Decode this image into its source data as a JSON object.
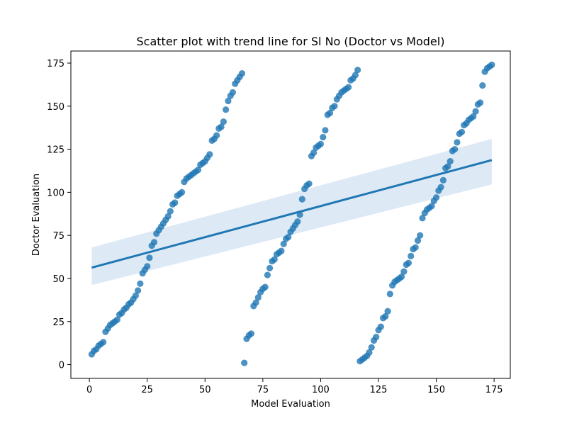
{
  "chart_data": {
    "type": "scatter",
    "title": "Scatter plot with trend line for Sl No (Doctor vs Model)",
    "xlabel": "Model Evaluation",
    "ylabel": "Doctor Evaluation",
    "xlim": [
      -8.0,
      182.0
    ],
    "ylim": [
      -8.0,
      182.0
    ],
    "xticks": [
      0,
      25,
      50,
      75,
      100,
      125,
      150,
      175
    ],
    "yticks": [
      0,
      25,
      50,
      75,
      100,
      125,
      150,
      175
    ],
    "grid": false,
    "legend": "none",
    "colors": {
      "points": "#1f77b4",
      "line": "#1f77b4",
      "band": "#c6dbef"
    },
    "series": [
      {
        "points": [
          [
            1,
            6
          ],
          [
            2,
            8
          ],
          [
            3,
            9
          ],
          [
            4,
            11
          ],
          [
            5,
            12
          ],
          [
            6,
            13
          ],
          [
            7,
            19
          ],
          [
            8,
            21
          ],
          [
            9,
            23
          ],
          [
            10,
            24
          ],
          [
            11,
            25
          ],
          [
            12,
            26
          ],
          [
            13,
            29
          ],
          [
            14,
            30
          ],
          [
            15,
            32
          ],
          [
            16,
            33
          ],
          [
            17,
            35
          ],
          [
            18,
            36
          ],
          [
            19,
            38
          ],
          [
            20,
            40
          ],
          [
            21,
            43
          ],
          [
            22,
            47
          ],
          [
            23,
            53
          ],
          [
            24,
            55
          ],
          [
            25,
            57
          ],
          [
            26,
            62
          ],
          [
            27,
            69
          ],
          [
            28,
            71
          ],
          [
            29,
            76
          ],
          [
            30,
            78
          ],
          [
            31,
            80
          ],
          [
            32,
            82
          ],
          [
            33,
            84
          ],
          [
            34,
            86
          ],
          [
            35,
            89
          ],
          [
            36,
            93
          ],
          [
            37,
            94
          ],
          [
            38,
            98
          ],
          [
            39,
            99
          ],
          [
            40,
            100
          ],
          [
            41,
            106
          ],
          [
            42,
            108
          ],
          [
            43,
            109
          ],
          [
            44,
            110
          ],
          [
            45,
            111
          ],
          [
            46,
            112
          ],
          [
            47,
            113
          ],
          [
            48,
            116
          ],
          [
            49,
            117
          ],
          [
            50,
            118
          ],
          [
            51,
            120
          ],
          [
            52,
            122
          ],
          [
            53,
            130
          ],
          [
            54,
            131
          ],
          [
            55,
            133
          ],
          [
            56,
            137
          ],
          [
            57,
            138
          ],
          [
            58,
            141
          ],
          [
            59,
            148
          ],
          [
            60,
            153
          ],
          [
            61,
            156
          ],
          [
            62,
            158
          ],
          [
            63,
            163
          ],
          [
            64,
            165
          ],
          [
            65,
            167
          ],
          [
            66,
            169
          ],
          [
            67,
            1
          ],
          [
            68,
            15
          ],
          [
            69,
            17
          ],
          [
            70,
            18
          ],
          [
            71,
            34
          ],
          [
            72,
            36
          ],
          [
            73,
            39
          ],
          [
            74,
            42
          ],
          [
            75,
            44
          ],
          [
            76,
            45
          ],
          [
            77,
            52
          ],
          [
            78,
            56
          ],
          [
            79,
            60
          ],
          [
            80,
            61
          ],
          [
            81,
            64
          ],
          [
            82,
            65
          ],
          [
            83,
            66
          ],
          [
            84,
            70
          ],
          [
            85,
            73
          ],
          [
            86,
            74
          ],
          [
            87,
            77
          ],
          [
            88,
            79
          ],
          [
            89,
            81
          ],
          [
            90,
            83
          ],
          [
            91,
            87
          ],
          [
            92,
            96
          ],
          [
            93,
            102
          ],
          [
            94,
            104
          ],
          [
            95,
            105
          ],
          [
            96,
            121
          ],
          [
            97,
            123
          ],
          [
            98,
            126
          ],
          [
            99,
            127
          ],
          [
            100,
            128
          ],
          [
            101,
            132
          ],
          [
            102,
            136
          ],
          [
            103,
            145
          ],
          [
            104,
            146
          ],
          [
            105,
            149
          ],
          [
            106,
            150
          ],
          [
            107,
            154
          ],
          [
            108,
            156
          ],
          [
            109,
            158
          ],
          [
            110,
            159
          ],
          [
            111,
            160
          ],
          [
            112,
            161
          ],
          [
            113,
            165
          ],
          [
            114,
            166
          ],
          [
            115,
            168
          ],
          [
            116,
            171
          ],
          [
            117,
            2
          ],
          [
            118,
            3
          ],
          [
            119,
            4
          ],
          [
            120,
            5
          ],
          [
            121,
            7
          ],
          [
            122,
            10
          ],
          [
            123,
            14
          ],
          [
            124,
            16
          ],
          [
            125,
            20
          ],
          [
            126,
            22
          ],
          [
            127,
            27
          ],
          [
            128,
            28
          ],
          [
            129,
            31
          ],
          [
            130,
            41
          ],
          [
            131,
            46
          ],
          [
            132,
            48
          ],
          [
            133,
            49
          ],
          [
            134,
            50
          ],
          [
            135,
            51
          ],
          [
            136,
            54
          ],
          [
            137,
            58
          ],
          [
            138,
            59
          ],
          [
            139,
            63
          ],
          [
            140,
            67
          ],
          [
            141,
            68
          ],
          [
            142,
            72
          ],
          [
            143,
            75
          ],
          [
            144,
            85
          ],
          [
            145,
            88
          ],
          [
            146,
            90
          ],
          [
            147,
            91
          ],
          [
            148,
            92
          ],
          [
            149,
            95
          ],
          [
            150,
            97
          ],
          [
            151,
            101
          ],
          [
            152,
            103
          ],
          [
            153,
            107
          ],
          [
            154,
            114
          ],
          [
            155,
            115
          ],
          [
            156,
            118
          ],
          [
            157,
            124
          ],
          [
            158,
            125
          ],
          [
            159,
            129
          ],
          [
            160,
            134
          ],
          [
            161,
            135
          ],
          [
            162,
            139
          ],
          [
            163,
            140
          ],
          [
            164,
            142
          ],
          [
            165,
            143
          ],
          [
            166,
            144
          ],
          [
            167,
            147
          ],
          [
            168,
            151
          ],
          [
            169,
            152
          ],
          [
            170,
            162
          ],
          [
            171,
            170
          ],
          [
            172,
            172
          ],
          [
            173,
            173
          ],
          [
            174,
            174
          ]
        ]
      }
    ],
    "trend_line": {
      "x": [
        1,
        174
      ],
      "y": [
        56.3,
        118.7
      ],
      "ci_lower": [
        46.2,
        104.6
      ],
      "ci_upper": [
        68.0,
        131.0
      ]
    }
  }
}
